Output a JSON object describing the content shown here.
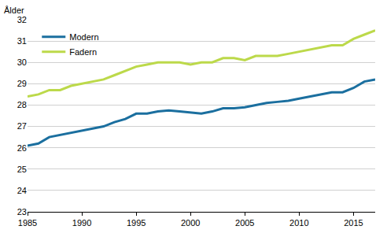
{
  "chart_data": {
    "type": "line",
    "y_label": "Ålder",
    "x": [
      1985,
      1986,
      1987,
      1988,
      1989,
      1990,
      1991,
      1992,
      1993,
      1994,
      1995,
      1996,
      1997,
      1998,
      1999,
      2000,
      2001,
      2002,
      2003,
      2004,
      2005,
      2006,
      2007,
      2008,
      2009,
      2010,
      2011,
      2012,
      2013,
      2014,
      2015,
      2016,
      2017
    ],
    "series": [
      {
        "name": "Modern",
        "color": "#1b6f9f",
        "values": [
          26.1,
          26.2,
          26.5,
          26.6,
          26.7,
          26.8,
          26.9,
          27.0,
          27.2,
          27.35,
          27.6,
          27.6,
          27.7,
          27.75,
          27.7,
          27.65,
          27.6,
          27.7,
          27.85,
          27.85,
          27.9,
          28.0,
          28.1,
          28.15,
          28.2,
          28.3,
          28.4,
          28.5,
          28.6,
          28.6,
          28.8,
          29.1,
          29.2
        ]
      },
      {
        "name": "Fadern",
        "color": "#bcd94a",
        "values": [
          28.4,
          28.5,
          28.7,
          28.7,
          28.9,
          29.0,
          29.1,
          29.2,
          29.4,
          29.6,
          29.8,
          29.9,
          30.0,
          30.0,
          30.0,
          29.9,
          30.0,
          30.0,
          30.2,
          30.2,
          30.1,
          30.3,
          30.3,
          30.3,
          30.4,
          30.5,
          30.6,
          30.7,
          30.8,
          30.8,
          31.1,
          31.3,
          31.5
        ]
      }
    ],
    "xlim": [
      1985,
      2017
    ],
    "xticks": [
      1985,
      1990,
      1995,
      2000,
      2005,
      2010,
      2015
    ],
    "ylim": [
      23,
      32
    ],
    "yticks": [
      23,
      24,
      25,
      26,
      27,
      28,
      29,
      30,
      31,
      32
    ],
    "grid": true,
    "legend": "top-left"
  }
}
